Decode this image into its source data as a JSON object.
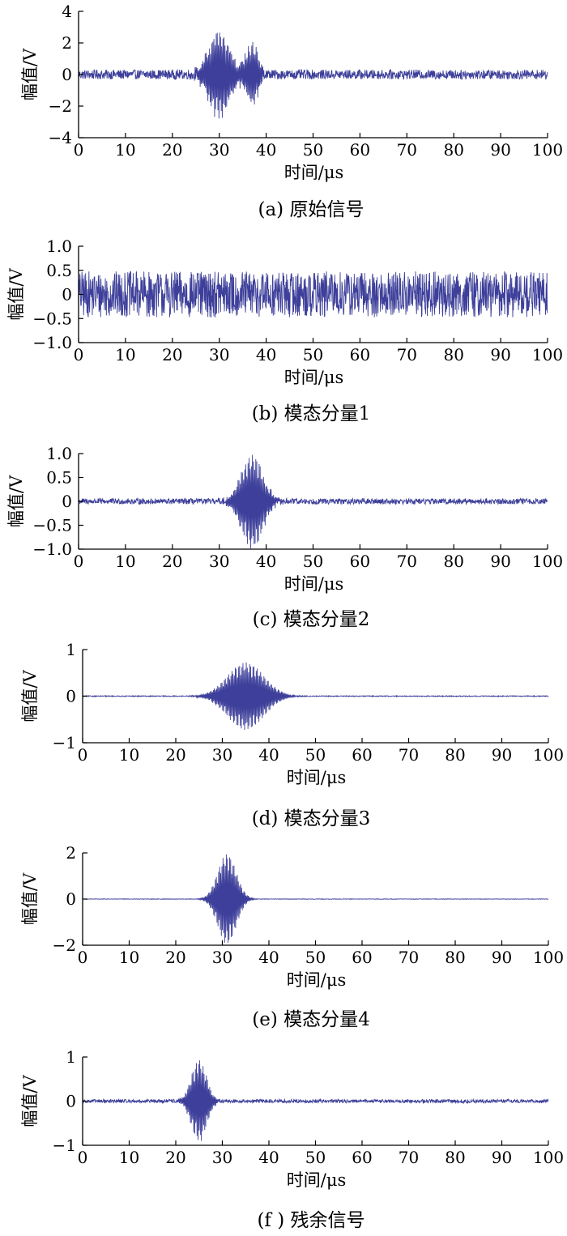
{
  "figure": {
    "x_unit_label": "时间/μs",
    "y_unit_label": "幅值/V",
    "line_color": "#3d3f9a"
  },
  "chart_data": [
    {
      "type": "line",
      "caption": "(a)  原始信号",
      "xlabel": "时间/μs",
      "ylabel": "幅值/V",
      "xlim": [
        0,
        100
      ],
      "ylim": [
        -4,
        4
      ],
      "x_ticks": [
        "0",
        "10",
        "20",
        "30",
        "40",
        "50",
        "60",
        "70",
        "80",
        "90",
        "100"
      ],
      "y_ticks": [
        "4",
        "2",
        "0",
        "−2",
        "−4"
      ],
      "y_tick_values": [
        4,
        2,
        0,
        -2,
        -4
      ],
      "signal": {
        "noise_amplitude": 0.3,
        "bursts": [
          {
            "center": 30,
            "width": 3.2,
            "amplitude": 2.7
          },
          {
            "center": 37,
            "width": 1.8,
            "amplitude": 1.9
          }
        ]
      }
    },
    {
      "type": "line",
      "caption": "(b)  模态分量1",
      "xlabel": "时间/μs",
      "ylabel": "幅值/V",
      "xlim": [
        0,
        100
      ],
      "ylim": [
        -1.0,
        1.0
      ],
      "x_ticks": [
        "0",
        "10",
        "20",
        "30",
        "40",
        "50",
        "60",
        "70",
        "80",
        "90",
        "100"
      ],
      "y_ticks": [
        "1.0",
        "0.5",
        "0",
        "−0.5",
        "−1.0"
      ],
      "y_tick_values": [
        1.0,
        0.5,
        0,
        -0.5,
        -1.0
      ],
      "signal": {
        "noise_amplitude": 0.48,
        "bursts": []
      }
    },
    {
      "type": "line",
      "caption": "(c)  模态分量2",
      "xlabel": "时间/μs",
      "ylabel": "幅值/V",
      "xlim": [
        0,
        100
      ],
      "ylim": [
        -1.0,
        1.0
      ],
      "x_ticks": [
        "0",
        "10",
        "20",
        "30",
        "40",
        "50",
        "60",
        "70",
        "80",
        "90",
        "100"
      ],
      "y_ticks": [
        "1.0",
        "0.5",
        "0",
        "−0.5",
        "−1.0"
      ],
      "y_tick_values": [
        1.0,
        0.5,
        0,
        -0.5,
        -1.0
      ],
      "signal": {
        "noise_amplitude": 0.06,
        "bursts": [
          {
            "center": 37,
            "width": 3.3,
            "amplitude": 0.95
          }
        ]
      }
    },
    {
      "type": "line",
      "caption": "(d)  模态分量3",
      "xlabel": "时间/μs",
      "ylabel": "幅值/V",
      "xlim": [
        0,
        100
      ],
      "ylim": [
        -1,
        1
      ],
      "x_ticks": [
        "0",
        "10",
        "20",
        "30",
        "40",
        "50",
        "60",
        "70",
        "80",
        "90",
        "100"
      ],
      "y_ticks": [
        "1",
        "0",
        "−1"
      ],
      "y_tick_values": [
        1,
        0,
        -1
      ],
      "signal": {
        "noise_amplitude": 0.01,
        "bursts": [
          {
            "center": 35,
            "width": 5.5,
            "amplitude": 0.72
          }
        ]
      }
    },
    {
      "type": "line",
      "caption": "(e)  模态分量4",
      "xlabel": "时间/μs",
      "ylabel": "幅值/V",
      "xlim": [
        0,
        100
      ],
      "ylim": [
        -2,
        2
      ],
      "x_ticks": [
        "0",
        "10",
        "20",
        "30",
        "40",
        "50",
        "60",
        "70",
        "80",
        "90",
        "100"
      ],
      "y_ticks": [
        "2",
        "0",
        "−2"
      ],
      "y_tick_values": [
        2,
        0,
        -2
      ],
      "signal": {
        "noise_amplitude": 0.01,
        "bursts": [
          {
            "center": 31,
            "width": 2.8,
            "amplitude": 1.95
          }
        ]
      }
    },
    {
      "type": "line",
      "caption": "(f )  残余信号",
      "xlabel": "时间/μs",
      "ylabel": "幅值/V",
      "xlim": [
        0,
        100
      ],
      "ylim": [
        -1,
        1
      ],
      "x_ticks": [
        "0",
        "10",
        "20",
        "30",
        "40",
        "50",
        "60",
        "70",
        "80",
        "90",
        "100"
      ],
      "y_ticks": [
        "1",
        "0",
        "−1"
      ],
      "y_tick_values": [
        1,
        0,
        -1
      ],
      "signal": {
        "noise_amplitude": 0.04,
        "bursts": [
          {
            "center": 25,
            "width": 2.3,
            "amplitude": 0.92
          }
        ]
      }
    }
  ]
}
